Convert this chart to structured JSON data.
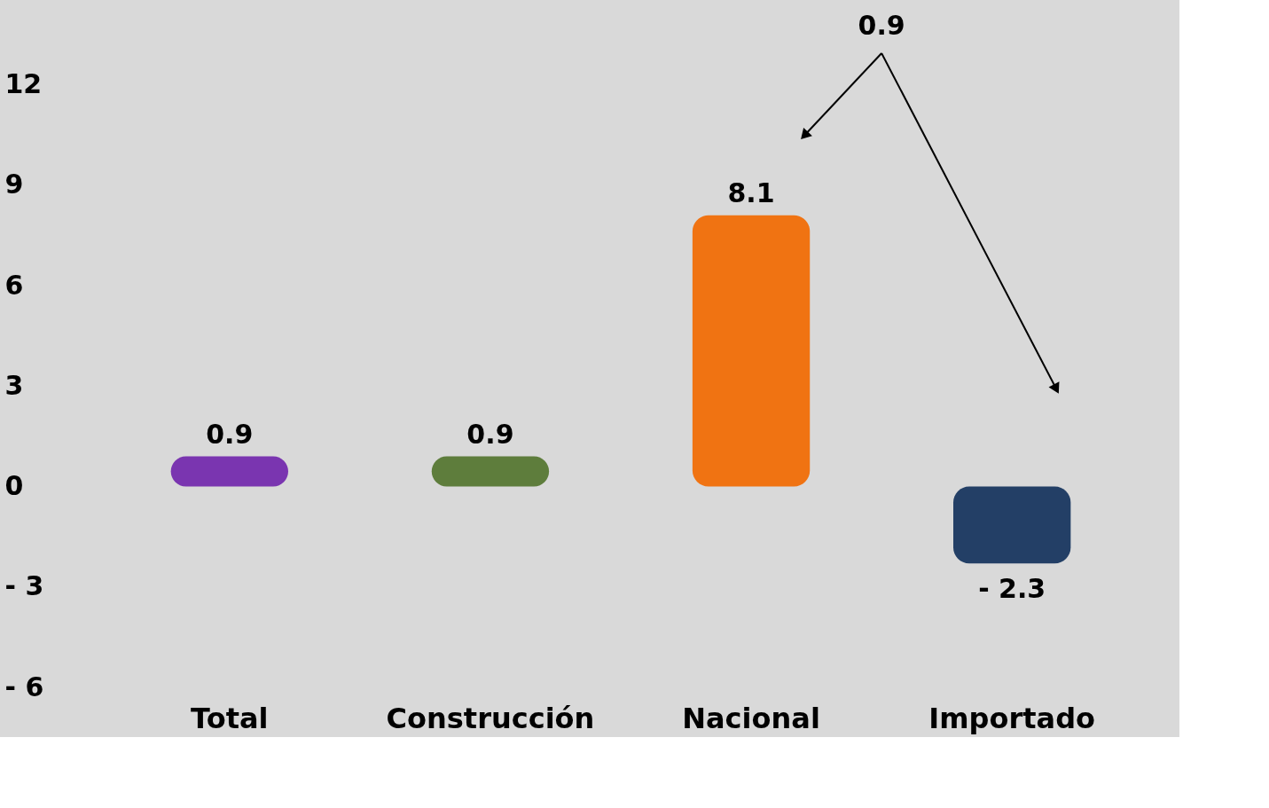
{
  "chart_data": {
    "type": "bar",
    "categories": [
      "Total",
      "Construcción",
      "Nacional",
      "Importado"
    ],
    "values": [
      0.9,
      0.9,
      8.1,
      -2.3
    ],
    "colors": [
      "#7a35b0",
      "#5e7d3c",
      "#f07312",
      "#233f66"
    ],
    "value_labels": [
      "0.9",
      "0.9",
      "8.1",
      "- 2.3"
    ],
    "annotations": [
      "0.9"
    ],
    "ylim": [
      -6,
      14.4
    ],
    "yticks": [
      {
        "value": -6,
        "label": "- 6"
      },
      {
        "value": -3,
        "label": "- 3"
      },
      0,
      3,
      6,
      9,
      12
    ]
  }
}
